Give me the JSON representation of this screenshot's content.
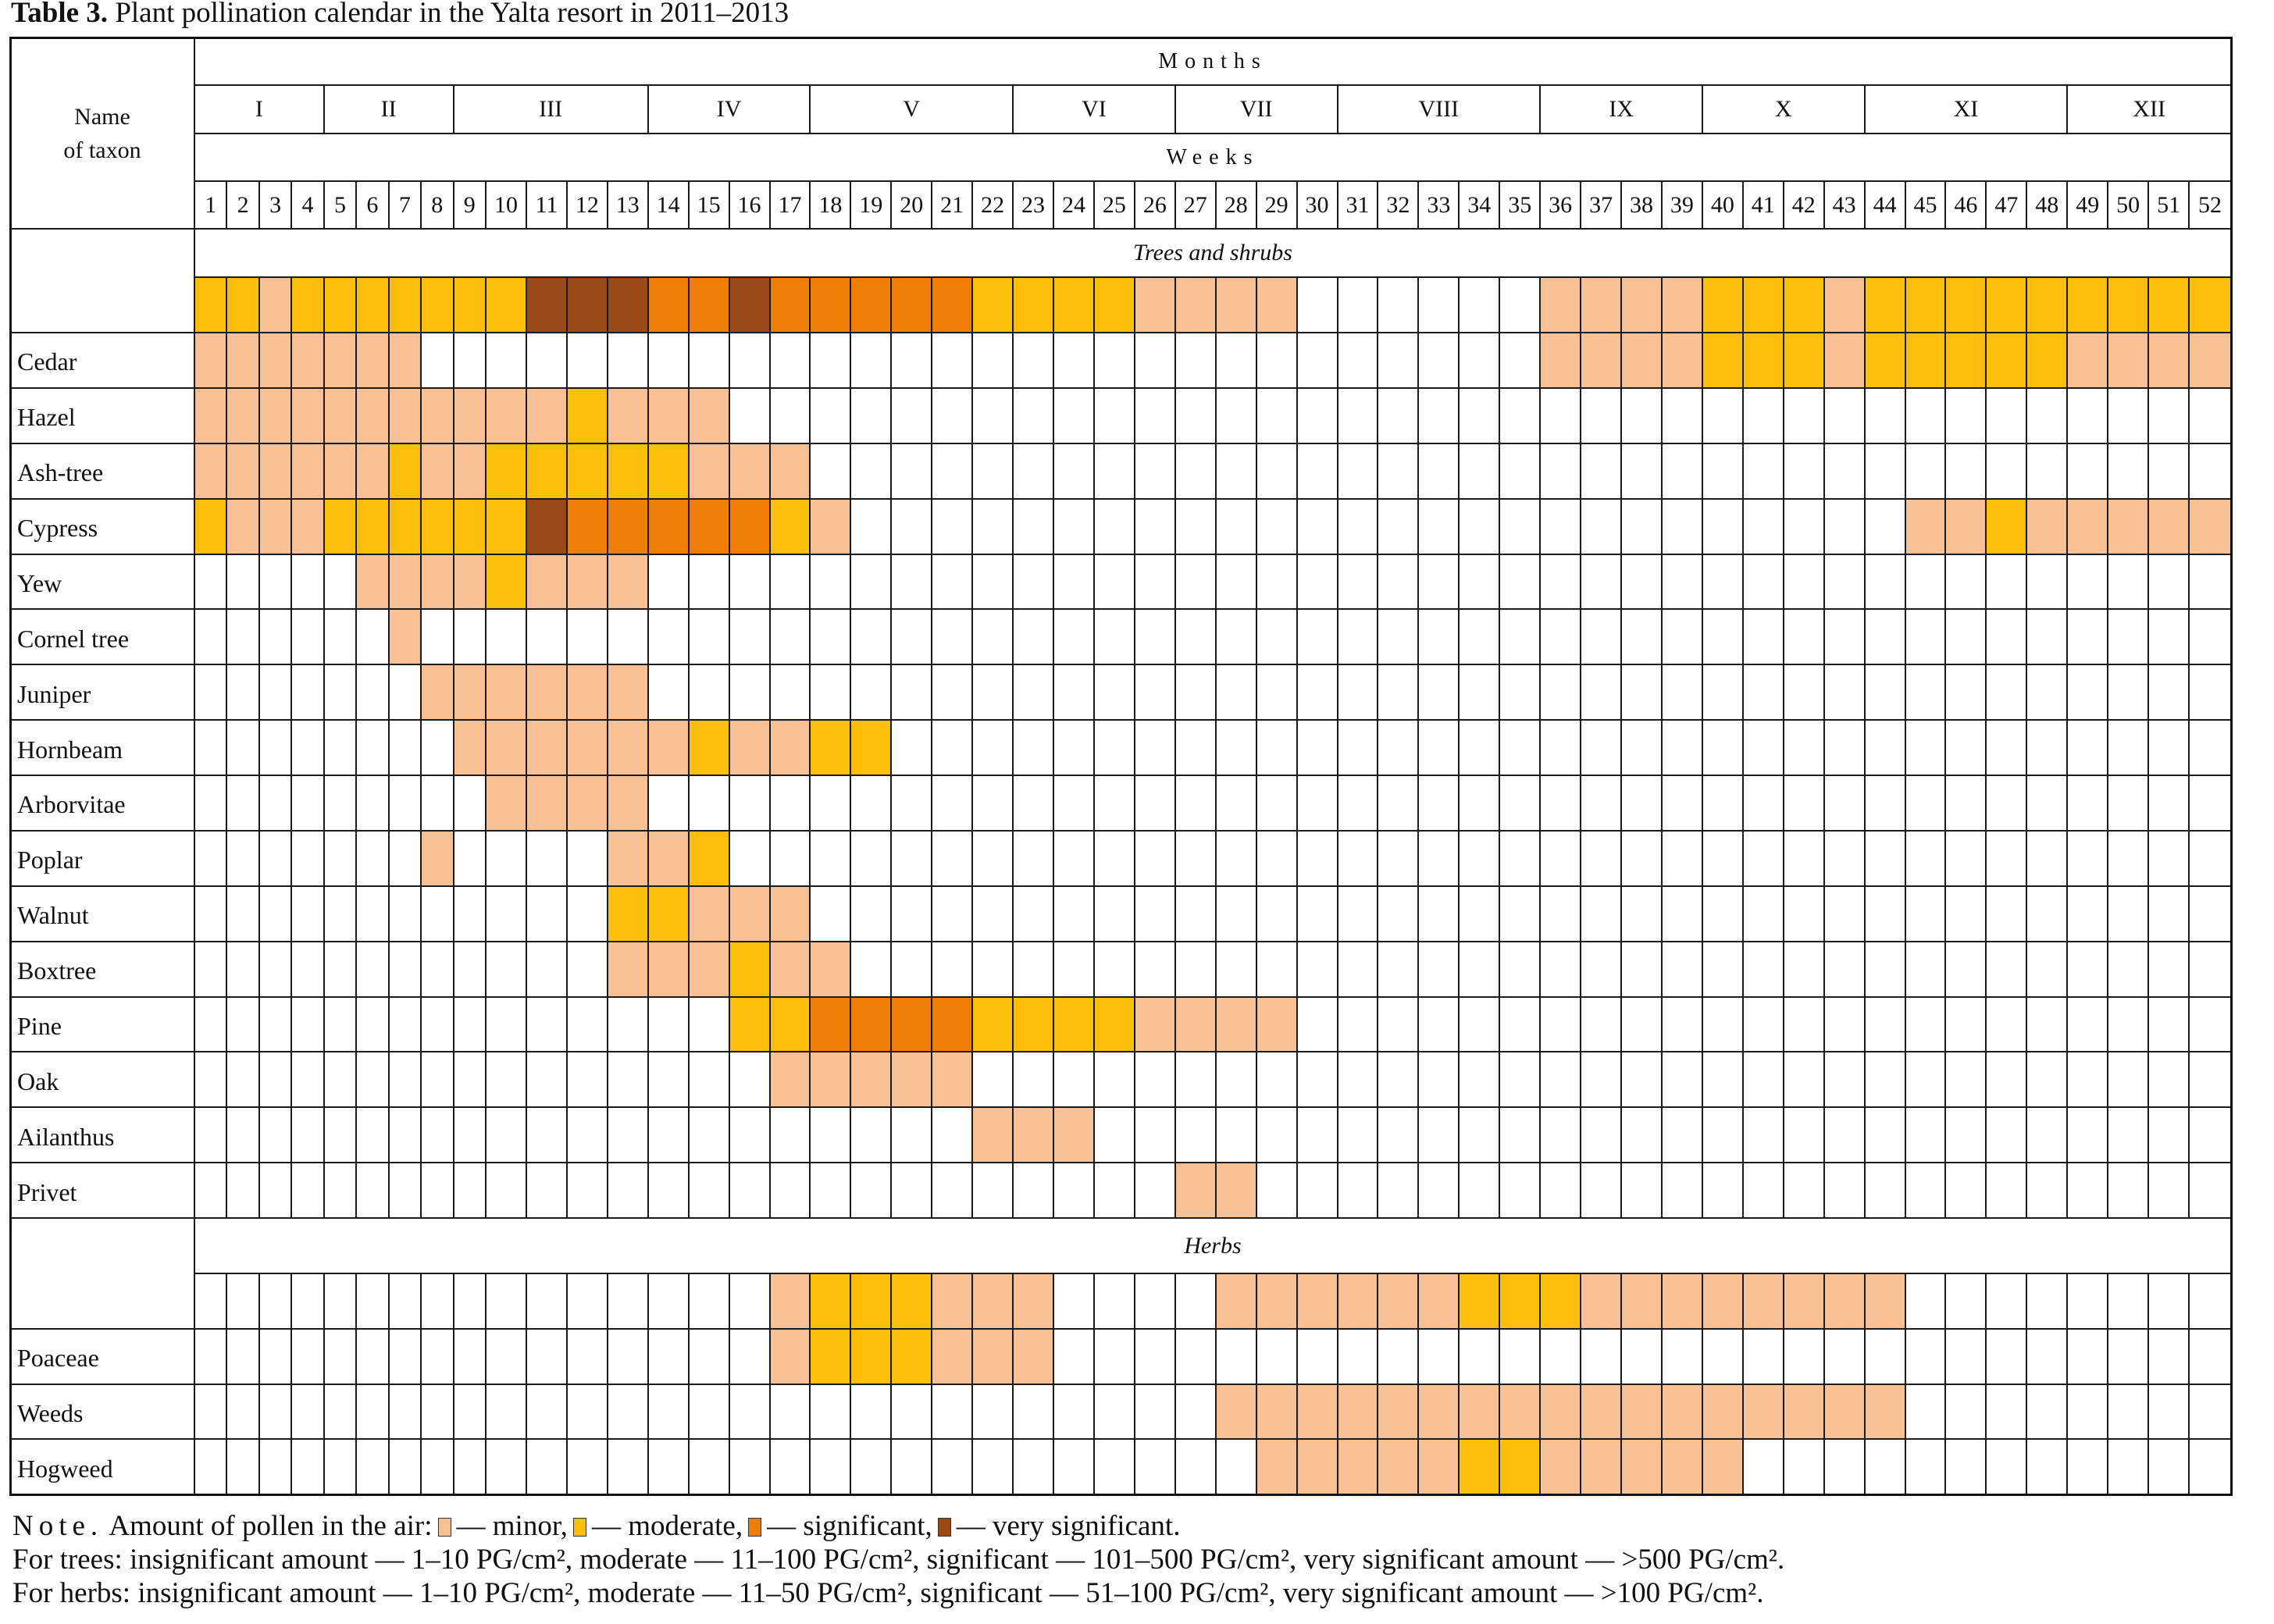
{
  "header": {
    "name_line1": "Name",
    "name_line2": "of taxon"
  },
  "chart_data": {
    "type": "table",
    "title_label": "Table 3.",
    "title_text": "Plant pollination calendar in the Yalta resort in 2011–2013",
    "months_label": "Months",
    "weeks_label": "Weeks",
    "months": [
      {
        "label": "I",
        "weeks": [
          1,
          4
        ]
      },
      {
        "label": "II",
        "weeks": [
          5,
          8
        ]
      },
      {
        "label": "III",
        "weeks": [
          9,
          13
        ]
      },
      {
        "label": "IV",
        "weeks": [
          14,
          17
        ]
      },
      {
        "label": "V",
        "weeks": [
          18,
          22
        ]
      },
      {
        "label": "VI",
        "weeks": [
          23,
          26
        ]
      },
      {
        "label": "VII",
        "weeks": [
          27,
          30
        ]
      },
      {
        "label": "VIII",
        "weeks": [
          31,
          35
        ]
      },
      {
        "label": "IX",
        "weeks": [
          36,
          39
        ]
      },
      {
        "label": "X",
        "weeks": [
          40,
          43
        ]
      },
      {
        "label": "XI",
        "weeks": [
          44,
          48
        ]
      },
      {
        "label": "XII",
        "weeks": [
          49,
          52
        ]
      }
    ],
    "weeks": [
      1,
      2,
      3,
      4,
      5,
      6,
      7,
      8,
      9,
      10,
      11,
      12,
      13,
      14,
      15,
      16,
      17,
      18,
      19,
      20,
      21,
      22,
      23,
      24,
      25,
      26,
      27,
      28,
      29,
      30,
      31,
      32,
      33,
      34,
      35,
      36,
      37,
      38,
      39,
      40,
      41,
      42,
      43,
      44,
      45,
      46,
      47,
      48,
      49,
      50,
      51,
      52
    ],
    "level_colors": {
      "1": "#F8C095",
      "2": "#FBBF0C",
      "3": "#EE7E05",
      "4": "#9A4A17"
    },
    "span_format": "[first_week, last_week, level] where level 1=minor, 2=moderate, 3=significant, 4=very significant",
    "sections": [
      {
        "label": "Trees and shrubs",
        "summary": [
          [
            1,
            2,
            2
          ],
          [
            3,
            3,
            1
          ],
          [
            4,
            10,
            2
          ],
          [
            11,
            13,
            4
          ],
          [
            14,
            15,
            3
          ],
          [
            16,
            16,
            4
          ],
          [
            17,
            21,
            3
          ],
          [
            22,
            25,
            2
          ],
          [
            26,
            29,
            1
          ],
          [
            36,
            39,
            1
          ],
          [
            40,
            42,
            2
          ],
          [
            43,
            43,
            1
          ],
          [
            44,
            52,
            2
          ]
        ],
        "taxa": [
          {
            "name": "Cedar",
            "spans": [
              [
                1,
                7,
                1
              ],
              [
                36,
                39,
                1
              ],
              [
                40,
                42,
                2
              ],
              [
                43,
                43,
                1
              ],
              [
                44,
                48,
                2
              ],
              [
                49,
                52,
                1
              ]
            ]
          },
          {
            "name": "Hazel",
            "spans": [
              [
                1,
                11,
                1
              ],
              [
                12,
                12,
                2
              ],
              [
                13,
                15,
                1
              ]
            ]
          },
          {
            "name": "Ash-tree",
            "spans": [
              [
                1,
                6,
                1
              ],
              [
                7,
                7,
                2
              ],
              [
                8,
                9,
                1
              ],
              [
                10,
                14,
                2
              ],
              [
                15,
                17,
                1
              ]
            ]
          },
          {
            "name": "Cypress",
            "spans": [
              [
                1,
                1,
                2
              ],
              [
                2,
                4,
                1
              ],
              [
                5,
                10,
                2
              ],
              [
                11,
                11,
                4
              ],
              [
                12,
                16,
                3
              ],
              [
                17,
                17,
                2
              ],
              [
                18,
                18,
                1
              ],
              [
                45,
                46,
                1
              ],
              [
                47,
                47,
                2
              ],
              [
                48,
                52,
                1
              ]
            ]
          },
          {
            "name": "Yew",
            "spans": [
              [
                6,
                9,
                1
              ],
              [
                10,
                10,
                2
              ],
              [
                11,
                13,
                1
              ]
            ]
          },
          {
            "name": "Cornel tree",
            "spans": [
              [
                7,
                7,
                1
              ]
            ]
          },
          {
            "name": "Juniper",
            "spans": [
              [
                8,
                13,
                1
              ]
            ]
          },
          {
            "name": "Hornbeam",
            "spans": [
              [
                9,
                14,
                1
              ],
              [
                15,
                15,
                2
              ],
              [
                16,
                17,
                1
              ],
              [
                18,
                19,
                2
              ]
            ]
          },
          {
            "name": "Arborvitae",
            "spans": [
              [
                10,
                13,
                1
              ]
            ]
          },
          {
            "name": "Poplar",
            "spans": [
              [
                8,
                8,
                1
              ],
              [
                13,
                14,
                1
              ],
              [
                15,
                15,
                2
              ]
            ]
          },
          {
            "name": "Walnut",
            "spans": [
              [
                13,
                14,
                2
              ],
              [
                15,
                17,
                1
              ]
            ]
          },
          {
            "name": "Boxtree",
            "spans": [
              [
                13,
                15,
                1
              ],
              [
                16,
                16,
                2
              ],
              [
                17,
                18,
                1
              ]
            ]
          },
          {
            "name": "Pine",
            "spans": [
              [
                16,
                17,
                2
              ],
              [
                18,
                21,
                3
              ],
              [
                22,
                25,
                2
              ],
              [
                26,
                29,
                1
              ]
            ]
          },
          {
            "name": "Oak",
            "spans": [
              [
                17,
                21,
                1
              ]
            ]
          },
          {
            "name": "Ailanthus",
            "spans": [
              [
                22,
                24,
                1
              ]
            ]
          },
          {
            "name": "Privet",
            "spans": [
              [
                27,
                28,
                1
              ]
            ]
          }
        ]
      },
      {
        "label": "Herbs",
        "summary": [
          [
            17,
            17,
            1
          ],
          [
            18,
            20,
            2
          ],
          [
            21,
            23,
            1
          ],
          [
            28,
            33,
            1
          ],
          [
            34,
            36,
            2
          ],
          [
            37,
            44,
            1
          ]
        ],
        "taxa": [
          {
            "name": "Poaceae",
            "spans": [
              [
                17,
                17,
                1
              ],
              [
                18,
                20,
                2
              ],
              [
                21,
                23,
                1
              ]
            ]
          },
          {
            "name": "Weeds",
            "spans": [
              [
                28,
                44,
                1
              ]
            ]
          },
          {
            "name": "Hogweed",
            "spans": [
              [
                29,
                33,
                1
              ],
              [
                34,
                35,
                2
              ],
              [
                36,
                40,
                1
              ]
            ]
          }
        ]
      }
    ]
  },
  "note": {
    "lead": "Note.",
    "intro": "Amount of pollen in the air:",
    "legend": [
      {
        "level": 1,
        "label": "— minor,"
      },
      {
        "level": 2,
        "label": "— moderate,"
      },
      {
        "level": 3,
        "label": "— significant,"
      },
      {
        "level": 4,
        "label": "— very significant."
      }
    ],
    "trees": "For trees: insignificant amount — 1–10 PG/cm², moderate — 11–100 PG/cm², significant — 101–500 PG/cm², very significant amount — >500 PG/cm².",
    "herbs": "For herbs: insignificant amount — 1–10 PG/cm², moderate — 11–50 PG/cm², significant — 51–100 PG/cm², very significant amount — >100 PG/cm²."
  }
}
